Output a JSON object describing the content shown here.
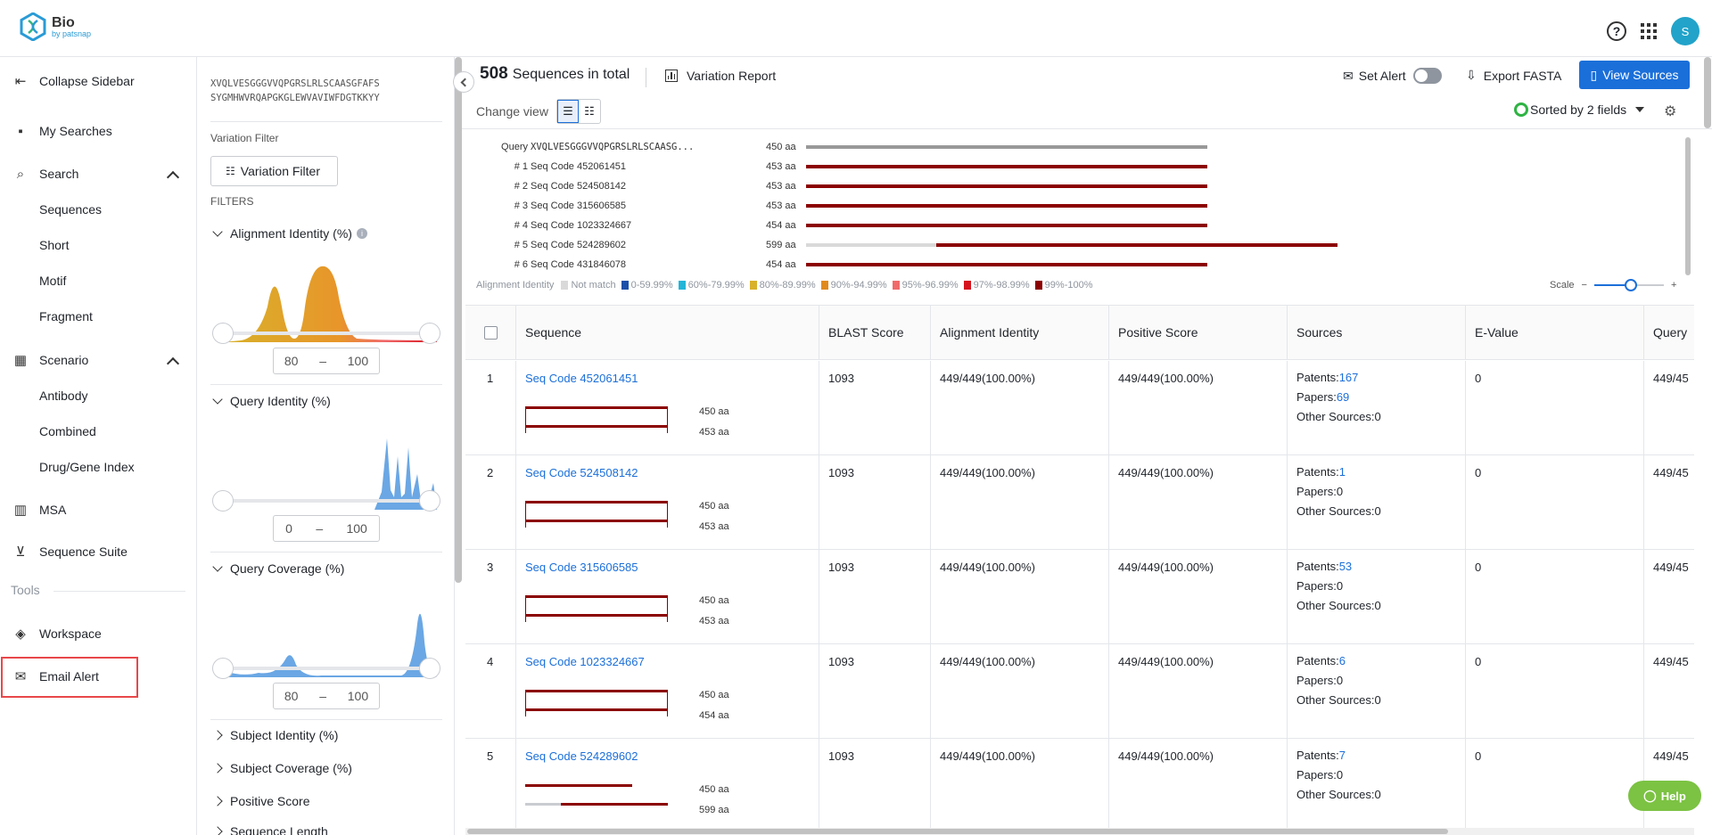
{
  "app": {
    "logo_title": "Bio",
    "logo_sub": "by patsnap",
    "help_icon": "?",
    "avatar": "S"
  },
  "sidebar": {
    "collapse": "Collapse Sidebar",
    "my_searches": "My Searches",
    "search": "Search",
    "search_items": [
      "Sequences",
      "Short",
      "Motif",
      "Fragment"
    ],
    "scenario": "Scenario",
    "scenario_items": [
      "Antibody",
      "Combined",
      "Drug/Gene Index"
    ],
    "msa": "MSA",
    "suite": "Sequence Suite",
    "tools": "Tools",
    "workspace": "Workspace",
    "email_alert": "Email Alert"
  },
  "filters": {
    "query_seq_line1": "XVQLVESGGGVVQPGRSLRLSCAASGFAFS",
    "query_seq_line2": "SYGMHWVRQAPGKGLEWVAVIWFDGTKKYY",
    "variation_label": "Variation Filter",
    "variation_button": "Variation Filter",
    "filters_label": "FILTERS",
    "alignment_identity": {
      "title": "Alignment Identity (%)",
      "min": "80",
      "max": "100"
    },
    "query_identity": {
      "title": "Query Identity (%)",
      "min": "0",
      "max": "100"
    },
    "query_coverage": {
      "title": "Query Coverage (%)",
      "min": "80",
      "max": "100"
    },
    "range_sep": "–",
    "collapsed": [
      "Subject Identity (%)",
      "Subject Coverage (%)",
      "Positive Score",
      "Sequence Length"
    ]
  },
  "header": {
    "total": "508",
    "total_label": "Sequences in total",
    "variation_report": "Variation Report",
    "set_alert": "Set Alert",
    "export": "Export FASTA",
    "view_sources": "View Sources",
    "change_view": "Change view",
    "sorted": "Sorted by 2 fields"
  },
  "alignment": {
    "query_label": "Query",
    "query_seq": "XVQLVESGGGVVQPGRSLRLSCAASG...",
    "query_len": "450 aa",
    "rows": [
      {
        "idx": "# 1",
        "name": "Seq Code 452061451",
        "len": "453 aa"
      },
      {
        "idx": "# 2",
        "name": "Seq Code 524508142",
        "len": "453 aa"
      },
      {
        "idx": "# 3",
        "name": "Seq Code 315606585",
        "len": "453 aa"
      },
      {
        "idx": "# 4",
        "name": "Seq Code 1023324667",
        "len": "454 aa"
      },
      {
        "idx": "# 5",
        "name": "Seq Code 524289602",
        "len": "599 aa"
      },
      {
        "idx": "# 6",
        "name": "Seq Code 431846078",
        "len": "454 aa"
      }
    ],
    "legend_title": "Alignment Identity",
    "legend": [
      {
        "label": "Not match",
        "color": "#d9d9d9"
      },
      {
        "label": "0-59.99%",
        "color": "#1b4fa8"
      },
      {
        "label": "60%-79.99%",
        "color": "#23b5d8"
      },
      {
        "label": "80%-89.99%",
        "color": "#d8b12a"
      },
      {
        "label": "90%-94.99%",
        "color": "#e08a1e"
      },
      {
        "label": "95%-96.99%",
        "color": "#f06a6a"
      },
      {
        "label": "97%-98.99%",
        "color": "#d6141e"
      },
      {
        "label": "99%-100%",
        "color": "#8b0000"
      }
    ],
    "scale_label": "Scale",
    "scale_minus": "−",
    "scale_plus": "+"
  },
  "table": {
    "columns": [
      "Sequence",
      "BLAST Score",
      "Alignment Identity",
      "Positive Score",
      "Sources",
      "E-Value",
      "Query"
    ],
    "rows": [
      {
        "n": "1",
        "seq": "Seq Code 452061451",
        "q_len": "450 aa",
        "s_len": "453 aa",
        "blast": "1093",
        "ident": "449/449(100.00%)",
        "pos": "449/449(100.00%)",
        "patents": "167",
        "papers": "69",
        "other": "0",
        "evalue": "0",
        "query": "449/45"
      },
      {
        "n": "2",
        "seq": "Seq Code 524508142",
        "q_len": "450 aa",
        "s_len": "453 aa",
        "blast": "1093",
        "ident": "449/449(100.00%)",
        "pos": "449/449(100.00%)",
        "patents": "1",
        "papers": "0",
        "other": "0",
        "evalue": "0",
        "query": "449/45"
      },
      {
        "n": "3",
        "seq": "Seq Code 315606585",
        "q_len": "450 aa",
        "s_len": "453 aa",
        "blast": "1093",
        "ident": "449/449(100.00%)",
        "pos": "449/449(100.00%)",
        "patents": "53",
        "papers": "0",
        "other": "0",
        "evalue": "0",
        "query": "449/45"
      },
      {
        "n": "4",
        "seq": "Seq Code 1023324667",
        "q_len": "450 aa",
        "s_len": "454 aa",
        "blast": "1093",
        "ident": "449/449(100.00%)",
        "pos": "449/449(100.00%)",
        "patents": "6",
        "papers": "0",
        "other": "0",
        "evalue": "0",
        "query": "449/45"
      },
      {
        "n": "5",
        "seq": "Seq Code 524289602",
        "q_len": "450 aa",
        "s_len": "599 aa",
        "blast": "1093",
        "ident": "449/449(100.00%)",
        "pos": "449/449(100.00%)",
        "patents": "7",
        "papers": "0",
        "other": "0",
        "evalue": "0",
        "query": "449/45"
      }
    ],
    "patents_label": "Patents:",
    "papers_label": "Papers:",
    "other_label": "Other Sources:"
  },
  "help": "Help"
}
